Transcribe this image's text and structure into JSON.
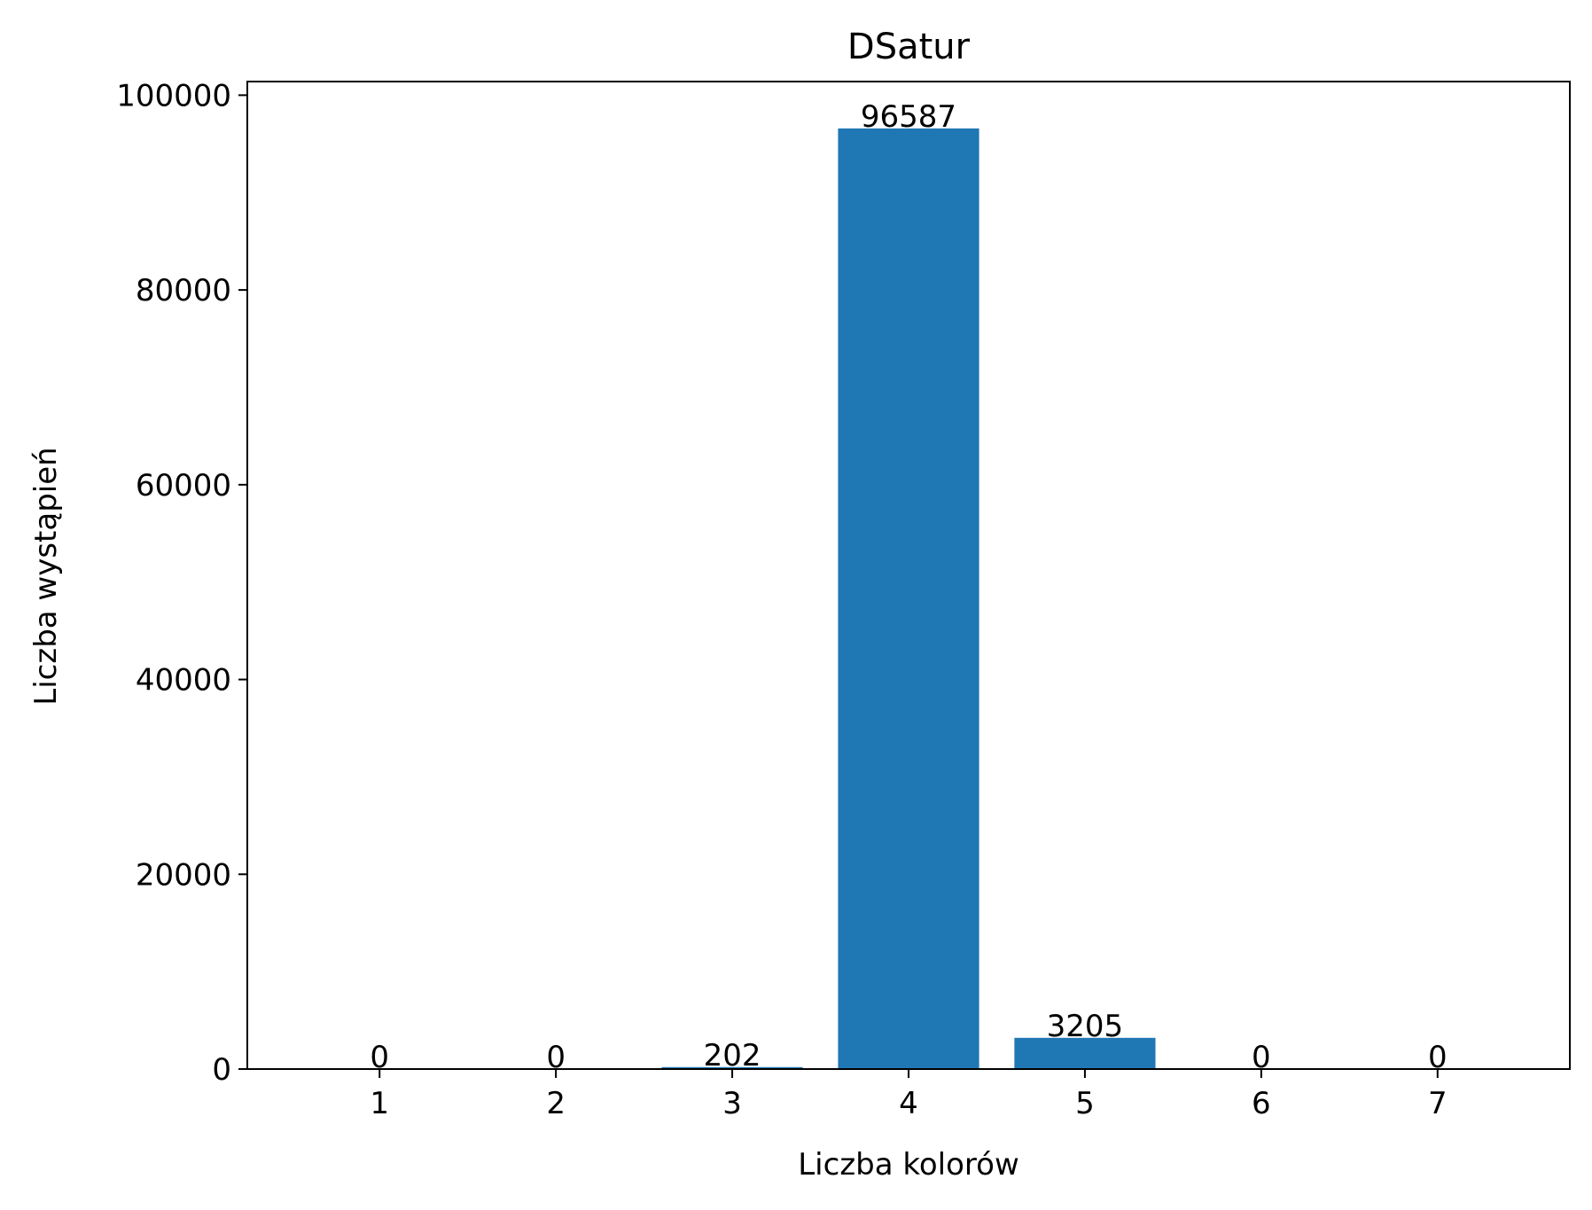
{
  "chart_data": {
    "type": "bar",
    "title": "DSatur",
    "xlabel": "Liczba kolorów",
    "ylabel": "Liczba wystąpień",
    "categories": [
      "1",
      "2",
      "3",
      "4",
      "5",
      "6",
      "7"
    ],
    "values": [
      0,
      0,
      202,
      96587,
      3205,
      0,
      0
    ],
    "data_labels": [
      "0",
      "0",
      "202",
      "96587",
      "3205",
      "0",
      "0"
    ],
    "ylim": [
      0,
      101400
    ],
    "yticks": [
      0,
      20000,
      40000,
      60000,
      80000,
      100000
    ],
    "ytick_labels": [
      "0",
      "20000",
      "40000",
      "60000",
      "80000",
      "100000"
    ],
    "bar_color": "#1f77b4",
    "grid": false,
    "legend": "none"
  }
}
